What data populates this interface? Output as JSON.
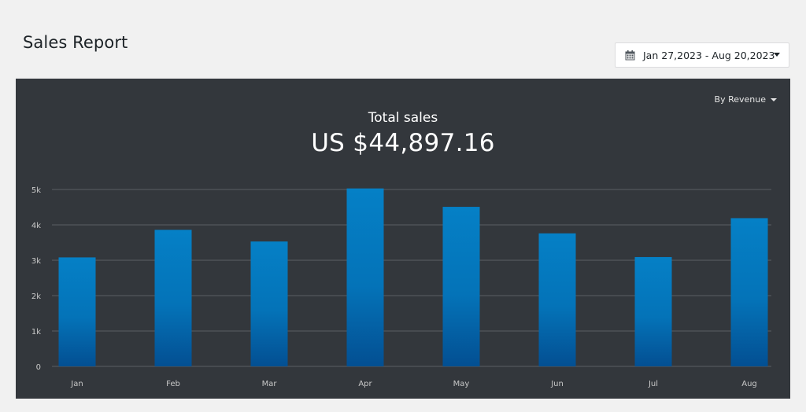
{
  "header": {
    "title": "Sales Report",
    "date_range": "Jan 27,2023 - Aug 20,2023"
  },
  "panel": {
    "metric_selector": "By Revenue",
    "total_label": "Total sales",
    "total_value": "US $44,897.16"
  },
  "colors": {
    "bar_top": "#0580c6",
    "bar_bottom": "#034f92",
    "panel_bg": "#33373c",
    "grid": "#5b5f64"
  },
  "chart_data": {
    "type": "bar",
    "categories": [
      "Jan",
      "Feb",
      "Mar",
      "Apr",
      "May",
      "Jun",
      "Jul",
      "Aug"
    ],
    "values": [
      3080,
      3860,
      3530,
      5030,
      4510,
      3760,
      3090,
      4190
    ],
    "ylim": [
      0,
      5000
    ],
    "yticks": [
      0,
      1000,
      2000,
      3000,
      4000,
      5000
    ],
    "ytick_labels": [
      "0",
      "1k",
      "2k",
      "3k",
      "4k",
      "5k"
    ],
    "grid": true
  }
}
